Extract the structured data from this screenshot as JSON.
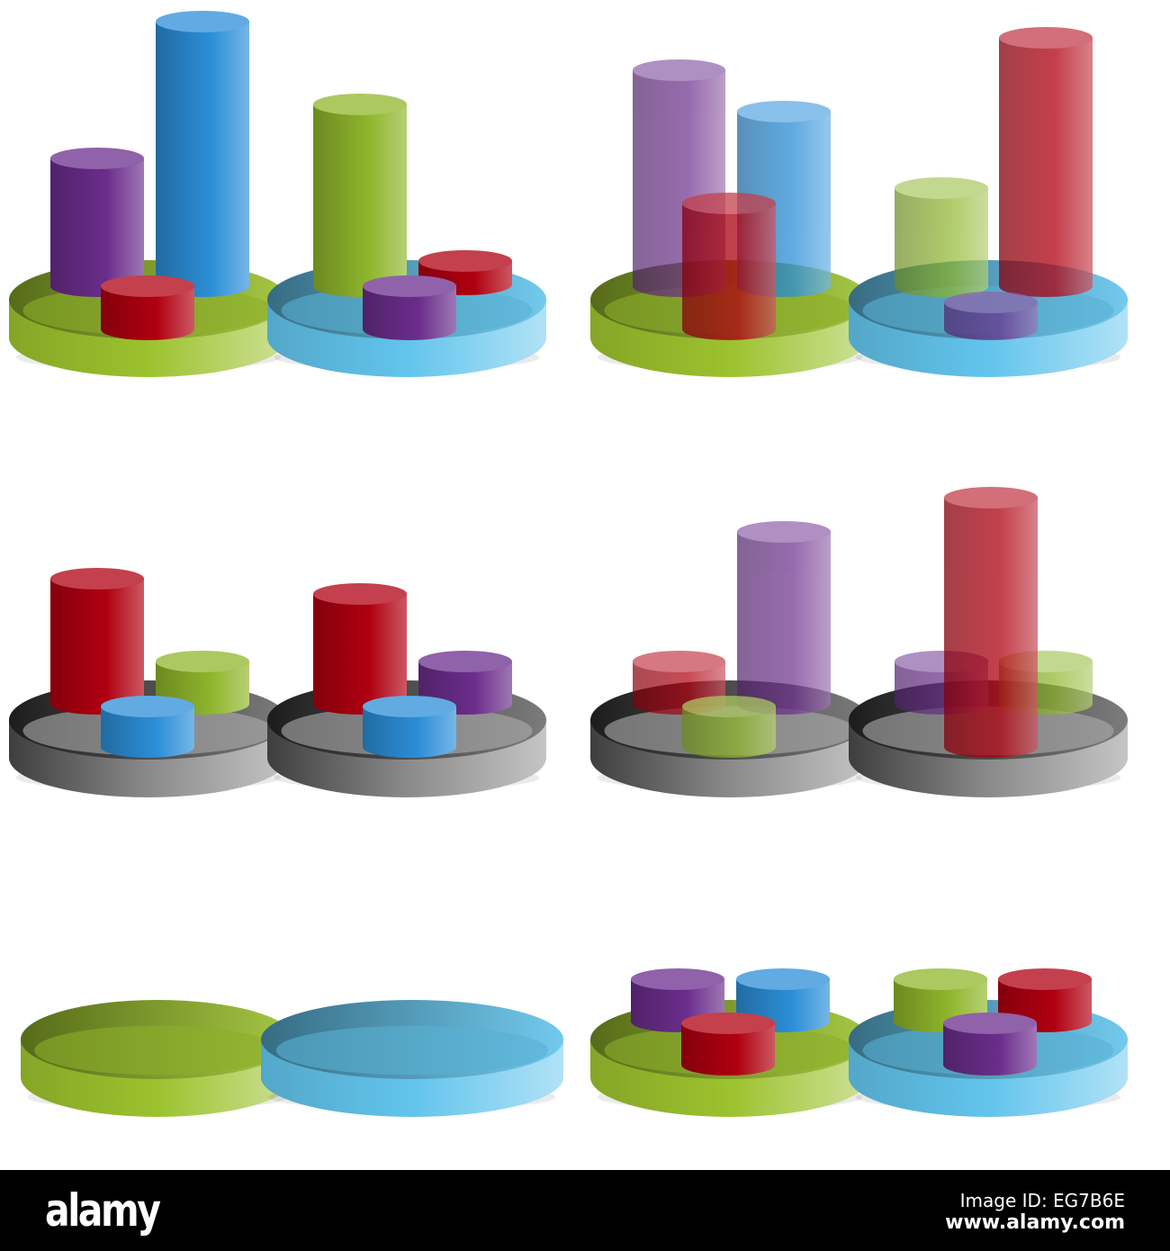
{
  "colors": {
    "purple": "#6b2d8c",
    "blue": "#2c8fd8",
    "green": "#8fb62c",
    "red": "#b00010",
    "base_green": "#9cc22e",
    "base_blue": "#62c4ec",
    "base_gray": "#8a8a8a"
  },
  "footer": {
    "logo": "alamy",
    "image_id": "Image ID: EG7B6E",
    "site": "www.alamy.com"
  }
}
